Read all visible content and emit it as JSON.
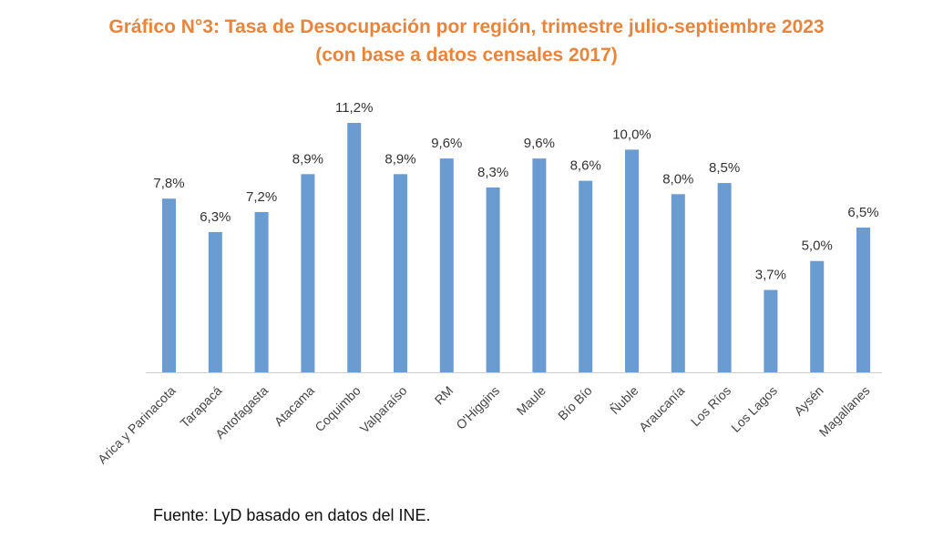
{
  "chart_data": {
    "type": "bar",
    "title": "Gráfico N°3: Tasa de Desocupación por región, trimestre julio-septiembre 2023",
    "subtitle": "(con base a datos censales 2017)",
    "categories": [
      "Arica y Parinacota",
      "Tarapacá",
      "Antofagasta",
      "Atacama",
      "Coquimbo",
      "Valparaíso",
      "RM",
      "O'Higgins",
      "Maule",
      "Bío Bío",
      "Ñuble",
      "Araucanía",
      "Los Ríos",
      "Los Lagos",
      "Aysén",
      "Magallanes"
    ],
    "values": [
      7.8,
      6.3,
      7.2,
      8.9,
      11.2,
      8.9,
      9.6,
      8.3,
      9.6,
      8.6,
      10.0,
      8.0,
      8.5,
      3.7,
      5.0,
      6.5
    ],
    "value_labels": [
      "7,8%",
      "6,3%",
      "7,2%",
      "8,9%",
      "11,2%",
      "8,9%",
      "9,6%",
      "8,3%",
      "9,6%",
      "8,6%",
      "10,0%",
      "8,0%",
      "8,5%",
      "3,7%",
      "5,0%",
      "6,5%"
    ],
    "xlabel": "",
    "ylabel": "",
    "ylim": [
      0,
      11.2
    ],
    "grid": false,
    "legend": "none",
    "colors": {
      "bar": "#6a9bd1",
      "title": "#e8853d"
    }
  },
  "source": "Fuente: LyD basado en datos del INE."
}
